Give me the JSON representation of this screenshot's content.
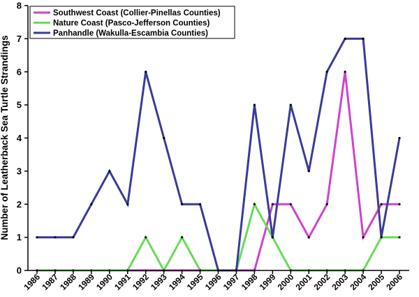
{
  "chart_data": {
    "type": "line",
    "title": "",
    "xlabel": "",
    "ylabel": "Number of Leatherback Sea Turtle Strandings",
    "ylim": [
      0,
      8
    ],
    "yticks": [
      "0",
      "1",
      "2",
      "3",
      "4",
      "5",
      "6",
      "7",
      "8"
    ],
    "grid": false,
    "legend_position": "top-left",
    "categories": [
      "1986",
      "1987",
      "1988",
      "1989",
      "1990",
      "1991",
      "1992",
      "1993",
      "1994",
      "1995",
      "1996",
      "1997",
      "1998",
      "1999",
      "2000",
      "2001",
      "2002",
      "2003",
      "2004",
      "2005",
      "2006"
    ],
    "series": [
      {
        "name": "Southwest Coast (Collier-Pinellas Counties)",
        "color": "#cc44cc",
        "values": [
          0,
          0,
          0,
          0,
          0,
          0,
          0,
          0,
          0,
          0,
          0,
          0,
          0,
          2,
          2,
          1,
          2,
          6,
          1,
          2,
          2
        ]
      },
      {
        "name": "Nature Coast (Pasco-Jefferson Counties)",
        "color": "#66dd55",
        "values": [
          0,
          0,
          0,
          0,
          0,
          0,
          1,
          0,
          1,
          0,
          0,
          0,
          2,
          1,
          0,
          0,
          0,
          0,
          0,
          1,
          1
        ]
      },
      {
        "name": "Panhandle (Wakulla-Escambia Counties)",
        "color": "#3a3a9c",
        "values": [
          1,
          1,
          1,
          2,
          3,
          2,
          6,
          4,
          2,
          2,
          0,
          0,
          5,
          1,
          5,
          3,
          6,
          7,
          7,
          1,
          4
        ]
      }
    ]
  }
}
